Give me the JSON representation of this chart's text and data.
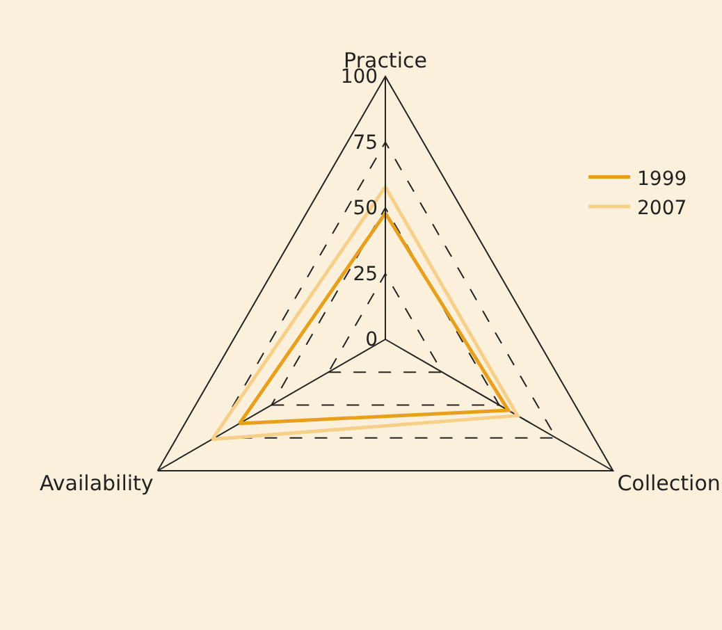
{
  "chart_data": {
    "type": "radar",
    "categories": [
      "Practice",
      "Collection",
      "Availability"
    ],
    "series": [
      {
        "name": "1999",
        "color": "#e8a01c",
        "values": [
          48,
          54,
          64
        ]
      },
      {
        "name": "2007",
        "color": "#f6cf88",
        "values": [
          58,
          58,
          76
        ]
      }
    ],
    "ylim": [
      0,
      100
    ],
    "yticks": [
      0,
      25,
      50,
      75,
      100
    ],
    "grid": true,
    "line_style": "solid",
    "marker": "none",
    "legend": "top right"
  }
}
